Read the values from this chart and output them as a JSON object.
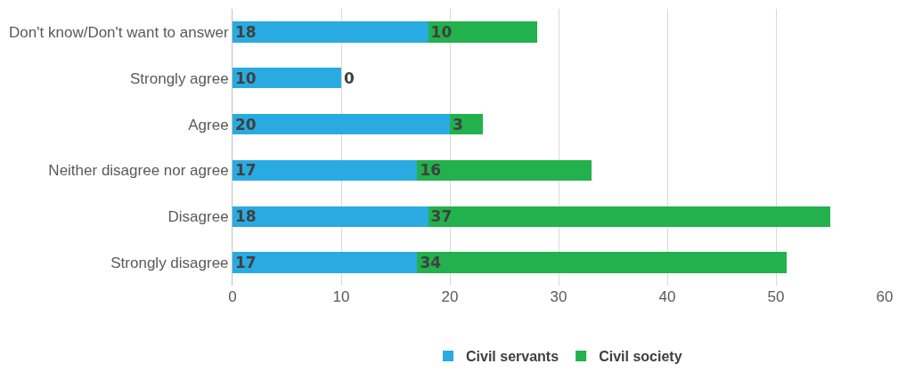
{
  "chart_data": {
    "type": "bar",
    "orientation": "horizontal",
    "stacked": true,
    "categories": [
      "Don't know/Don't want to answer",
      "Strongly agree",
      "Agree",
      "Neither disagree nor agree",
      "Disagree",
      "Strongly disagree"
    ],
    "series": [
      {
        "name": "Civil servants",
        "color": "#29abe2",
        "values": [
          18,
          10,
          20,
          17,
          18,
          17
        ]
      },
      {
        "name": "Civil society",
        "color": "#22b14c",
        "values": [
          10,
          0,
          3,
          16,
          37,
          34
        ]
      }
    ],
    "xlim": [
      0,
      60
    ],
    "xticks": [
      0,
      10,
      20,
      30,
      40,
      50,
      60
    ],
    "grid": "x",
    "legend": "bottom",
    "data_labels": true
  }
}
